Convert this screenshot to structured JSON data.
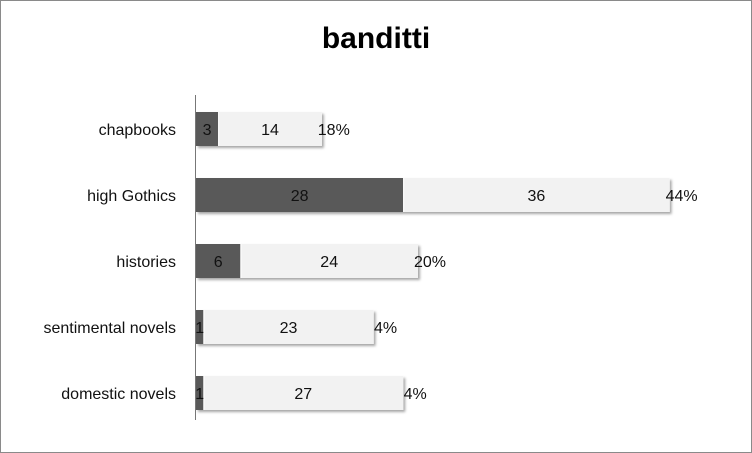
{
  "chart_data": {
    "type": "bar",
    "orientation": "horizontal",
    "stacked": true,
    "title": "banditti",
    "xlabel": "",
    "ylabel": "",
    "categories": [
      "chapbooks",
      "high Gothics",
      "histories",
      "sentimental novels",
      "domestic novels"
    ],
    "series": [
      {
        "values": [
          3,
          28,
          6,
          1,
          1
        ],
        "color": "#595959"
      },
      {
        "values": [
          14,
          36,
          24,
          23,
          27
        ],
        "color": "#f2f2f2"
      }
    ],
    "percent_labels": [
      "18%",
      "44%",
      "20%",
      "4%",
      "4%"
    ],
    "xlim": [
      0,
      64
    ],
    "grid": false,
    "legend": "none"
  }
}
